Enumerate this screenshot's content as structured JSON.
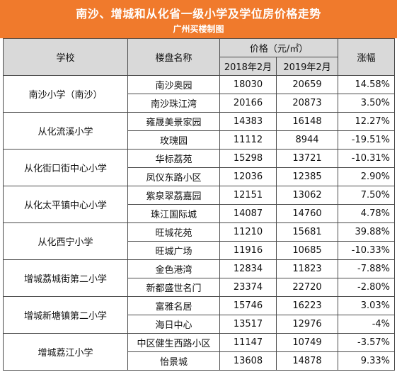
{
  "header": {
    "title": "南沙、增城和从化省一级小学及学位房价格走势",
    "subtitle": "广州买楼制图"
  },
  "columns": {
    "school": "学校",
    "estate": "楼盘名称",
    "price": "价格（元/㎡）",
    "y2018": "2018年2月",
    "y2019": "2019年2月",
    "change": "涨幅"
  },
  "groups": [
    {
      "school": "南沙小学（南沙）",
      "rows": [
        {
          "estate": "南沙奥园",
          "p2018": "18030",
          "p2019": "20659",
          "change": "14.58%"
        },
        {
          "estate": "南沙珠江湾",
          "p2018": "20166",
          "p2019": "20873",
          "change": "3.50%"
        }
      ]
    },
    {
      "school": "从化流溪小学",
      "rows": [
        {
          "estate": "雍晟美景家园",
          "p2018": "14383",
          "p2019": "16148",
          "change": "12.27%"
        },
        {
          "estate": "玫瑰园",
          "p2018": "11112",
          "p2019": "8944",
          "change": "-19.51%"
        }
      ]
    },
    {
      "school": "从化街口街中心小学",
      "rows": [
        {
          "estate": "华标荔苑",
          "p2018": "15298",
          "p2019": "13721",
          "change": "-10.31%"
        },
        {
          "estate": "凤仪东路小区",
          "p2018": "12036",
          "p2019": "12385",
          "change": "2.90%"
        }
      ]
    },
    {
      "school": "从化太平镇中心小学",
      "rows": [
        {
          "estate": "紫泉翠荔嘉园",
          "p2018": "12151",
          "p2019": "13062",
          "change": "7.50%"
        },
        {
          "estate": "珠江国际城",
          "p2018": "14087",
          "p2019": "14760",
          "change": "4.78%"
        }
      ]
    },
    {
      "school": "从化西宁小学",
      "rows": [
        {
          "estate": "旺城花苑",
          "p2018": "11210",
          "p2019": "15681",
          "change": "39.88%"
        },
        {
          "estate": "旺城广场",
          "p2018": "11916",
          "p2019": "10685",
          "change": "-10.33%"
        }
      ]
    },
    {
      "school": "增城荔城街第二小学",
      "rows": [
        {
          "estate": "金色港湾",
          "p2018": "12834",
          "p2019": "11823",
          "change": "-7.88%"
        },
        {
          "estate": "新都盛世名门",
          "p2018": "23374",
          "p2019": "22720",
          "change": "-2.80%"
        }
      ]
    },
    {
      "school": "增城新塘镇第二小学",
      "rows": [
        {
          "estate": "富雅名居",
          "p2018": "15746",
          "p2019": "16223",
          "change": "3.03%"
        },
        {
          "estate": "海日中心",
          "p2018": "13517",
          "p2019": "12976",
          "change": "-4%"
        }
      ]
    },
    {
      "school": "增城荔江小学",
      "rows": [
        {
          "estate": "中区健生西路小区",
          "p2018": "11147",
          "p2019": "10749",
          "change": "-3.57%"
        },
        {
          "estate": "怡景城",
          "p2018": "13608",
          "p2019": "14878",
          "change": "9.33%"
        }
      ]
    }
  ]
}
